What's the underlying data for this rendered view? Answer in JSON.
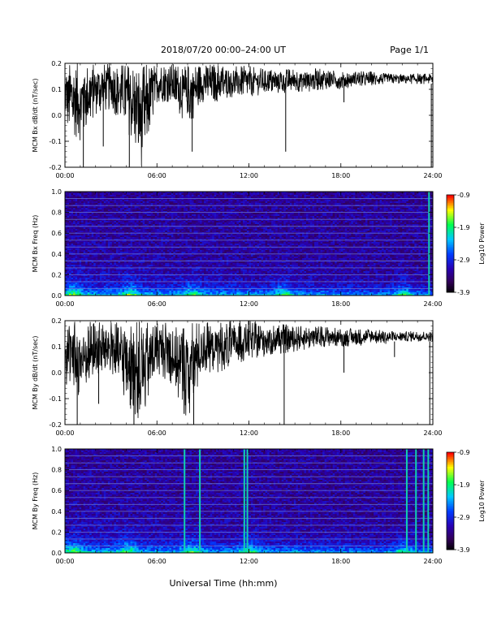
{
  "header": {
    "title": "2018/07/20  00:00–24:00 UT",
    "page": "Page 1/1"
  },
  "footer": {
    "xlabel": "Universal Time (hh:mm)"
  },
  "chart_data": [
    {
      "type": "line",
      "ylabel": "MCM Bx dB/dt (nT/sec)",
      "ylim": [
        -0.2,
        0.2
      ],
      "yticks": [
        "0.2",
        "0.1",
        "0.0",
        "-0.1",
        "-0.2"
      ],
      "xlim": [
        "00:00",
        "24:00"
      ],
      "xticks": [
        "00:00",
        "06:00",
        "12:00",
        "18:00",
        "24:00"
      ],
      "series": [
        {
          "color": "#000000",
          "envelope": {
            "t": [
              0,
              1,
              2,
              3,
              4,
              5,
              6,
              7,
              8,
              9,
              10,
              11,
              12,
              13,
              14,
              15,
              16,
              17,
              18,
              19,
              20,
              21,
              22,
              23,
              24
            ],
            "upper": [
              0.2,
              0.2,
              0.2,
              0.2,
              0.2,
              0.2,
              0.2,
              0.2,
              0.2,
              0.2,
              0.2,
              0.19,
              0.19,
              0.18,
              0.18,
              0.18,
              0.18,
              0.18,
              0.17,
              0.17,
              0.17,
              0.16,
              0.16,
              0.16,
              0.16
            ],
            "lower": [
              -0.05,
              -0.1,
              0.0,
              0.02,
              -0.05,
              -0.2,
              0.05,
              0.05,
              -0.05,
              0.05,
              0.05,
              0.07,
              0.07,
              0.08,
              0.08,
              0.09,
              0.09,
              0.1,
              0.1,
              0.11,
              0.11,
              0.12,
              0.12,
              0.12,
              0.12
            ]
          },
          "spikes": [
            [
              1.2,
              -0.2
            ],
            [
              2.5,
              -0.12
            ],
            [
              4.2,
              -0.2
            ],
            [
              8.3,
              -0.14
            ],
            [
              14.4,
              -0.14
            ],
            [
              18.2,
              0.05
            ],
            [
              23.9,
              -0.2
            ]
          ]
        }
      ]
    },
    {
      "type": "heatmap",
      "ylabel": "MCM Bx Freq (Hz)",
      "ylim": [
        0.0,
        1.0
      ],
      "yticks": [
        "1.0",
        "0.8",
        "0.6",
        "0.4",
        "0.2",
        "0.0"
      ],
      "xlim": [
        "00:00",
        "24:00"
      ],
      "xticks": [
        "00:00",
        "06:00",
        "12:00",
        "18:00",
        "24:00"
      ],
      "colorbar": {
        "label": "Log10 Power",
        "range": [
          -3.9,
          -0.9
        ],
        "ticks": [
          "-0.9",
          "-1.9",
          "-2.9",
          "-3.9"
        ]
      },
      "harmonic_lines_hz": [
        0.066,
        0.133,
        0.2,
        0.266,
        0.333,
        0.4,
        0.466,
        0.533,
        0.6,
        0.666,
        0.733,
        0.8,
        0.866,
        0.933,
        1.0
      ],
      "vertical_lines_h": [
        23.75
      ],
      "low_freq_bursts_h": [
        0.5,
        4.2,
        8.2,
        14.2,
        22.0
      ]
    },
    {
      "type": "line",
      "ylabel": "MCM By dB/dt (nT/sec)",
      "ylim": [
        -0.2,
        0.2
      ],
      "yticks": [
        "0.2",
        "0.1",
        "0.0",
        "-0.1",
        "-0.2"
      ],
      "xlim": [
        "00:00",
        "24:00"
      ],
      "xticks": [
        "00:00",
        "06:00",
        "12:00",
        "18:00",
        "24:00"
      ],
      "series": [
        {
          "color": "#000000",
          "envelope": {
            "t": [
              0,
              1,
              2,
              3,
              4,
              5,
              6,
              7,
              8,
              9,
              10,
              11,
              12,
              13,
              14,
              15,
              16,
              17,
              18,
              19,
              20,
              21,
              22,
              23,
              24
            ],
            "upper": [
              0.2,
              0.2,
              0.2,
              0.2,
              0.2,
              0.2,
              0.2,
              0.2,
              0.2,
              0.2,
              0.2,
              0.2,
              0.2,
              0.19,
              0.19,
              0.18,
              0.18,
              0.18,
              0.17,
              0.17,
              0.17,
              0.16,
              0.16,
              0.16,
              0.16
            ],
            "lower": [
              -0.05,
              -0.1,
              -0.02,
              0.0,
              -0.12,
              -0.2,
              0.0,
              -0.05,
              -0.2,
              0.0,
              0.0,
              0.02,
              0.05,
              0.06,
              0.07,
              0.08,
              0.09,
              0.1,
              0.1,
              0.1,
              0.11,
              0.11,
              0.12,
              0.12,
              0.12
            ]
          },
          "spikes": [
            [
              0.8,
              -0.2
            ],
            [
              2.2,
              -0.12
            ],
            [
              4.5,
              -0.2
            ],
            [
              8.4,
              -0.2
            ],
            [
              14.3,
              -0.2
            ],
            [
              18.2,
              0.0
            ],
            [
              21.5,
              0.06
            ],
            [
              23.8,
              -0.2
            ]
          ]
        }
      ]
    },
    {
      "type": "heatmap",
      "ylabel": "MCM By Freq (Hz)",
      "ylim": [
        0.0,
        1.0
      ],
      "yticks": [
        "1.0",
        "0.8",
        "0.6",
        "0.4",
        "0.2",
        "0.0"
      ],
      "xlim": [
        "00:00",
        "24:00"
      ],
      "xticks": [
        "00:00",
        "06:00",
        "12:00",
        "18:00",
        "24:00"
      ],
      "colorbar": {
        "label": "Log10 Power",
        "range": [
          -3.9,
          -0.9
        ],
        "ticks": [
          "-0.9",
          "-1.9",
          "-2.9",
          "-3.9"
        ]
      },
      "harmonic_lines_hz": [
        0.066,
        0.133,
        0.2,
        0.266,
        0.333,
        0.4,
        0.466,
        0.533,
        0.6,
        0.666,
        0.733,
        0.8,
        0.866,
        0.933,
        1.0
      ],
      "vertical_lines_h": [
        7.8,
        8.8,
        11.7,
        11.9,
        22.3,
        22.9,
        23.4,
        23.7
      ],
      "low_freq_bursts_h": [
        0.5,
        4.0,
        8.2,
        12.0,
        22.0
      ]
    }
  ]
}
